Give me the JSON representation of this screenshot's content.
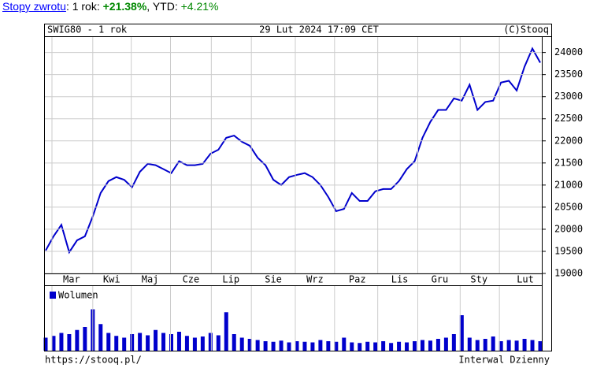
{
  "header": {
    "link": "Stopy zwrotu",
    "sep1": ": 1 rok: ",
    "ret1": "+21.38%",
    "sep2": ", YTD: ",
    "ret2": "+4.21%"
  },
  "footer": {
    "url": "https://stooq.pl/",
    "interval": "Interwal Dzienny"
  },
  "chart_data": [
    {
      "type": "line",
      "title": "SWIG80 - 1 rok",
      "subtitle": "29 Lut 2024 17:09 CET",
      "source": "(C)Stooq",
      "series": [
        {
          "name": "SWIG80",
          "color": "#0000cc",
          "values": [
            19520,
            19840,
            20100,
            19480,
            19750,
            19840,
            20290,
            20820,
            21090,
            21180,
            21120,
            20950,
            21300,
            21480,
            21450,
            21360,
            21270,
            21540,
            21450,
            21450,
            21480,
            21710,
            21800,
            22070,
            22120,
            21980,
            21890,
            21620,
            21450,
            21120,
            21000,
            21180,
            21230,
            21270,
            21180,
            21000,
            20730,
            20410,
            20460,
            20820,
            20640,
            20640,
            20860,
            20910,
            20910,
            21090,
            21360,
            21540,
            22070,
            22430,
            22700,
            22700,
            22960,
            22910,
            23270,
            22700,
            22880,
            22910,
            23320,
            23360,
            23140,
            23680,
            24090,
            23770
          ]
        }
      ],
      "xlim": [
        0,
        63
      ],
      "xticks": [
        {
          "value": 3.3,
          "label": "Mar"
        },
        {
          "value": 8.4,
          "label": "Kwi"
        },
        {
          "value": 13.3,
          "label": "Maj"
        },
        {
          "value": 18.5,
          "label": "Cze"
        },
        {
          "value": 23.6,
          "label": "Lip"
        },
        {
          "value": 29,
          "label": "Sie"
        },
        {
          "value": 34.3,
          "label": "Wrz"
        },
        {
          "value": 39.7,
          "label": "Paz"
        },
        {
          "value": 45.1,
          "label": "Lis"
        },
        {
          "value": 50.2,
          "label": "Gru"
        },
        {
          "value": 55.2,
          "label": "Sty"
        },
        {
          "value": 61.1,
          "label": "Lut"
        }
      ],
      "xgrid": [
        0.8,
        6,
        10.9,
        15.9,
        21.1,
        26.2,
        31.8,
        36.8,
        42.3,
        47.4,
        52.8,
        57.8
      ],
      "ylim": [
        19000,
        24350
      ],
      "yticks": [
        19000,
        19500,
        20000,
        20500,
        21000,
        21500,
        22000,
        22500,
        23000,
        23500,
        24000
      ],
      "grid": true
    },
    {
      "type": "bar",
      "series": [
        {
          "name": "Wolumen",
          "color": "#0000cc",
          "values": [
            22,
            25,
            30,
            28,
            35,
            40,
            70,
            45,
            30,
            25,
            22,
            28,
            30,
            26,
            35,
            30,
            28,
            32,
            25,
            22,
            24,
            30,
            26,
            65,
            28,
            22,
            20,
            18,
            16,
            15,
            17,
            14,
            16,
            15,
            14,
            18,
            16,
            15,
            22,
            14,
            13,
            15,
            14,
            16,
            13,
            15,
            14,
            16,
            18,
            17,
            20,
            22,
            28,
            60,
            22,
            18,
            20,
            24,
            16,
            18,
            17,
            20,
            18,
            16
          ]
        }
      ],
      "xlim": [
        0,
        63
      ],
      "ylim": [
        0,
        100
      ],
      "grid": true
    }
  ]
}
